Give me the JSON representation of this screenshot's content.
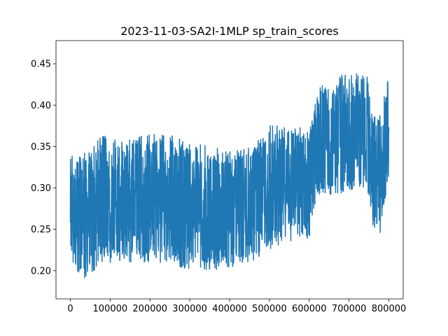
{
  "chart_data": {
    "type": "line",
    "title": "2023-11-03-SA2I-1MLP sp_train_scores",
    "xlabel": "",
    "ylabel": "",
    "xlim": [
      -36000,
      836000
    ],
    "ylim": [
      0.166,
      0.478
    ],
    "x_ticks": [
      0,
      100000,
      200000,
      300000,
      400000,
      500000,
      600000,
      700000,
      800000
    ],
    "x_tick_labels": [
      "0",
      "100000",
      "200000",
      "300000",
      "400000",
      "500000",
      "600000",
      "700000",
      "800000"
    ],
    "y_ticks": [
      0.2,
      0.25,
      0.3,
      0.35,
      0.4,
      0.45
    ],
    "y_tick_labels": [
      "0.20",
      "0.25",
      "0.30",
      "0.35",
      "0.40",
      "0.45"
    ],
    "grid": false,
    "series": [
      {
        "color": "#1f77b4",
        "x": [
          0,
          10000,
          20000,
          40000,
          60000,
          80000,
          100000,
          150000,
          200000,
          250000,
          300000,
          350000,
          400000,
          450000,
          480000,
          500000,
          550000,
          600000,
          620000,
          650000,
          700000,
          740000,
          750000,
          760000,
          780000,
          800000
        ],
        "upper": [
          0.35,
          0.34,
          0.34,
          0.345,
          0.355,
          0.365,
          0.36,
          0.36,
          0.365,
          0.365,
          0.355,
          0.35,
          0.345,
          0.35,
          0.36,
          0.375,
          0.38,
          0.37,
          0.42,
          0.43,
          0.44,
          0.44,
          0.43,
          0.39,
          0.39,
          0.44
        ],
        "lower": [
          0.22,
          0.2,
          0.19,
          0.19,
          0.2,
          0.21,
          0.21,
          0.21,
          0.21,
          0.21,
          0.2,
          0.2,
          0.2,
          0.21,
          0.215,
          0.225,
          0.235,
          0.23,
          0.285,
          0.29,
          0.295,
          0.3,
          0.29,
          0.25,
          0.245,
          0.3
        ],
        "center": [
          0.28,
          0.27,
          0.265,
          0.27,
          0.275,
          0.28,
          0.285,
          0.285,
          0.285,
          0.285,
          0.28,
          0.275,
          0.275,
          0.28,
          0.285,
          0.295,
          0.305,
          0.305,
          0.355,
          0.36,
          0.365,
          0.365,
          0.36,
          0.32,
          0.315,
          0.37
        ]
      }
    ]
  }
}
